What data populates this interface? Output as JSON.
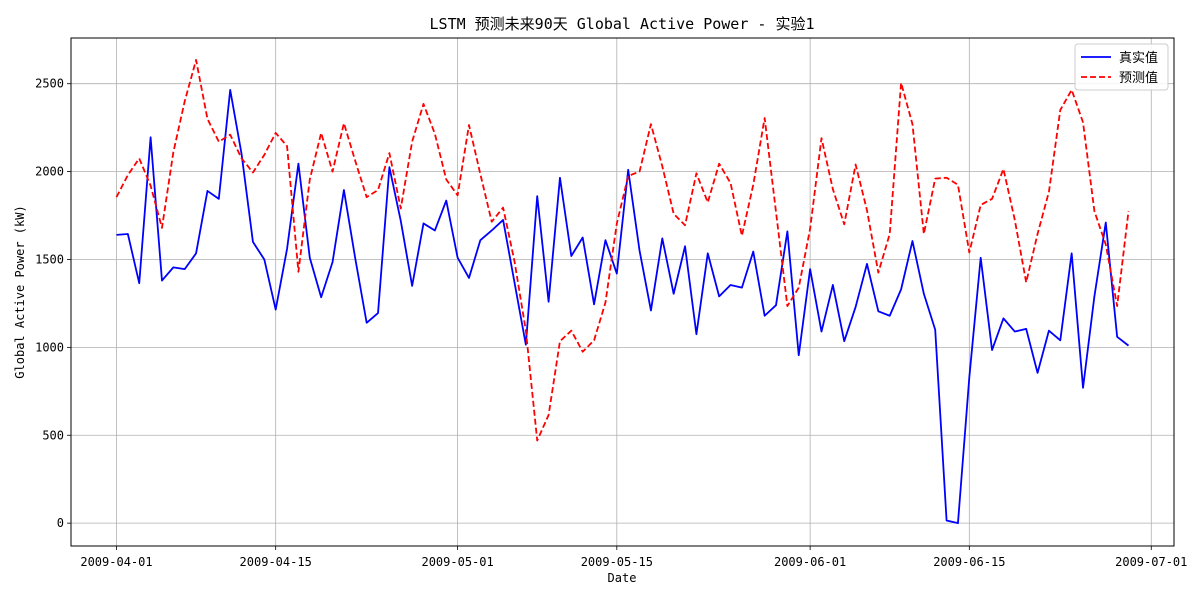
{
  "chart_data": {
    "type": "line",
    "title": "LSTM 预测未来90天 Global Active Power - 实验1",
    "xlabel": "Date",
    "ylabel": "Global Active Power (kW)",
    "x_start": "2009-04-01",
    "x_end": "2009-06-29",
    "xlim": [
      "2009-03-28",
      "2009-07-03"
    ],
    "ylim": [
      -130,
      2760
    ],
    "x_ticks": [
      "2009-04-01",
      "2009-04-15",
      "2009-05-01",
      "2009-05-15",
      "2009-06-01",
      "2009-06-15",
      "2009-07-01"
    ],
    "y_ticks": [
      0,
      500,
      1000,
      1500,
      2000,
      2500
    ],
    "grid": true,
    "legend_position": "top-right",
    "series": [
      {
        "name": "真实值",
        "color": "#0000ff",
        "style": "solid",
        "values": [
          1640,
          1645,
          1365,
          2195,
          1380,
          1455,
          1445,
          1535,
          1890,
          1845,
          2465,
          2100,
          1600,
          1500,
          1215,
          1560,
          2045,
          1510,
          1285,
          1485,
          1895,
          1505,
          1140,
          1195,
          2025,
          1720,
          1350,
          1705,
          1665,
          1835,
          1510,
          1395,
          1610,
          1665,
          1725,
          1370,
          1015,
          1860,
          1260,
          1965,
          1520,
          1625,
          1245,
          1610,
          1420,
          2010,
          1550,
          1210,
          1620,
          1305,
          1575,
          1075,
          1535,
          1290,
          1355,
          1340,
          1545,
          1180,
          1240,
          1660,
          955,
          1445,
          1090,
          1355,
          1035,
          1230,
          1475,
          1205,
          1180,
          1330,
          1605,
          1305,
          1100,
          15,
          0,
          830,
          1510,
          985,
          1165,
          1090,
          1105,
          855,
          1095,
          1040,
          1535,
          770,
          1290,
          1710,
          1060,
          1010
        ]
      },
      {
        "name": "预测值",
        "color": "#ff0000",
        "style": "dashed",
        "values": [
          1855,
          1980,
          2075,
          1920,
          1680,
          2110,
          2400,
          2635,
          2300,
          2170,
          2210,
          2075,
          1995,
          2095,
          2220,
          2145,
          1430,
          1955,
          2220,
          2000,
          2275,
          2060,
          1855,
          1895,
          2105,
          1790,
          2170,
          2385,
          2215,
          1955,
          1865,
          2265,
          1985,
          1715,
          1795,
          1490,
          1095,
          470,
          615,
          1035,
          1095,
          975,
          1040,
          1255,
          1705,
          1975,
          2000,
          2270,
          2030,
          1760,
          1695,
          1990,
          1825,
          2045,
          1935,
          1635,
          1925,
          2305,
          1770,
          1235,
          1340,
          1675,
          2190,
          1900,
          1700,
          2040,
          1780,
          1425,
          1645,
          2505,
          2270,
          1645,
          1960,
          1965,
          1925,
          1540,
          1810,
          1845,
          2015,
          1725,
          1370,
          1645,
          1885,
          2350,
          2465,
          2280,
          1775,
          1585,
          1235,
          1775
        ]
      }
    ]
  }
}
